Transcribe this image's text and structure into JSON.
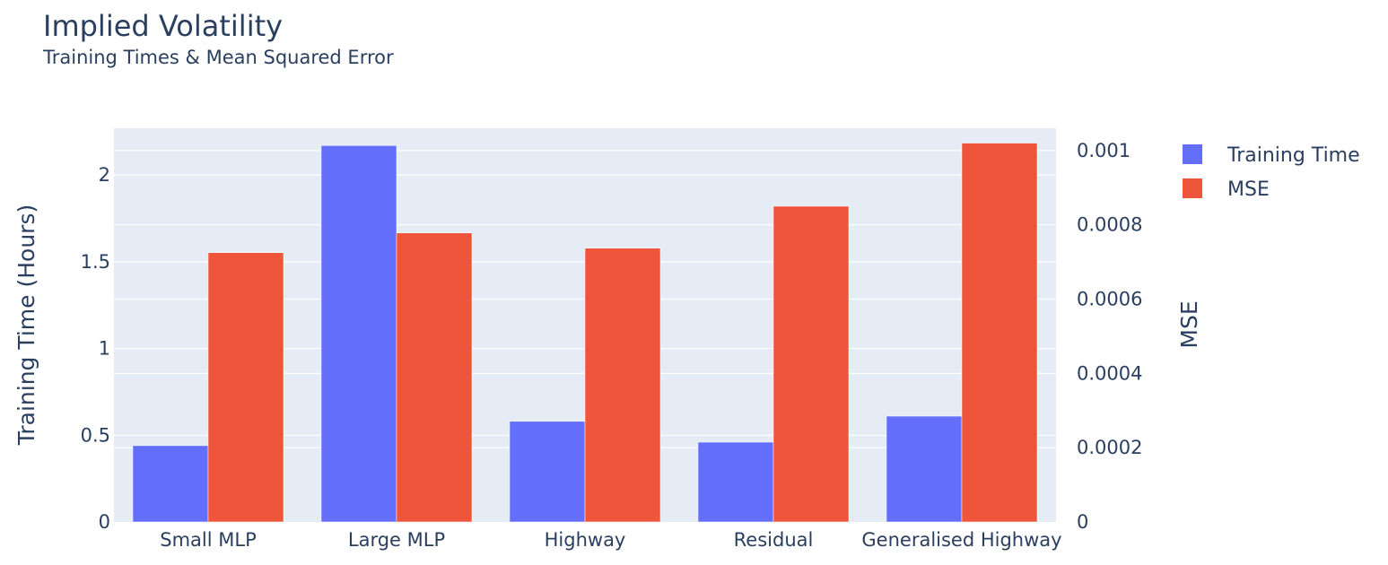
{
  "title": "Implied Volatility",
  "subtitle": "Training Times & Mean Squared Error",
  "chart_data": {
    "type": "bar",
    "categories": [
      "Small MLP",
      "Large MLP",
      "Highway",
      "Residual",
      "Generalised Highway"
    ],
    "series": [
      {
        "name": "Training Time",
        "axis": "y",
        "color": "#636efa",
        "values": [
          0.44,
          2.17,
          0.58,
          0.46,
          0.61
        ]
      },
      {
        "name": "MSE",
        "axis": "y2",
        "color": "#ef553b",
        "values": [
          0.000725,
          0.000778,
          0.000737,
          0.00085,
          0.00102
        ]
      }
    ],
    "ylabel": "Training Time (Hours)",
    "y2label": "MSE",
    "ylim": [
      0,
      2.27
    ],
    "y2lim": [
      0,
      0.00106
    ],
    "yticks": [
      {
        "value": 0,
        "label": "0"
      },
      {
        "value": 0.5,
        "label": "0.5"
      },
      {
        "value": 1,
        "label": "1"
      },
      {
        "value": 1.5,
        "label": "1.5"
      },
      {
        "value": 2,
        "label": "2"
      }
    ],
    "y2ticks": [
      {
        "value": 0,
        "label": "0"
      },
      {
        "value": 0.0002,
        "label": "0.0002"
      },
      {
        "value": 0.0004,
        "label": "0.0004"
      },
      {
        "value": 0.0006,
        "label": "0.0006"
      },
      {
        "value": 0.0008,
        "label": "0.0008"
      },
      {
        "value": 0.001,
        "label": "0.001"
      }
    ],
    "plot_bgcolor": "#e5ecf6",
    "grid": true,
    "legend_position": "top-right"
  }
}
